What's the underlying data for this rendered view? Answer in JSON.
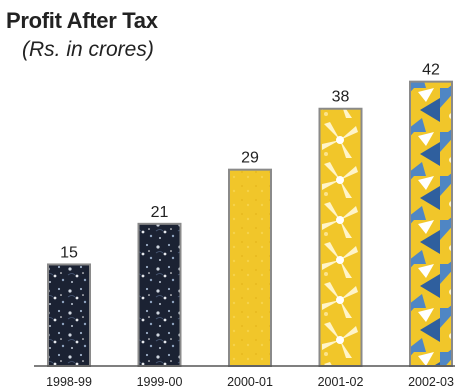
{
  "chart_data": {
    "type": "bar",
    "title": "Profit After Tax",
    "subtitle": "(Rs. in crores)",
    "categories": [
      "1998-99",
      "1999-00",
      "2000-01",
      "2001-02",
      "2002-03"
    ],
    "values": [
      15,
      21,
      29,
      38,
      42
    ],
    "xlabel": "",
    "ylabel": "",
    "ylim": [
      0,
      50
    ],
    "grid": false,
    "legend": "none",
    "bar_fills": [
      "dark-floral",
      "dark-floral",
      "yellow-plain",
      "yellow-floral",
      "blue-yellow-mixed"
    ]
  },
  "colors": {
    "dark_navy": "#1b2233",
    "sky_blue": "#4f86c4",
    "mustard_yellow": "#f1c62a",
    "pale_cream": "#fff4c8",
    "leaf_green": "#6a9e58",
    "frame_gray": "#8a8a8a",
    "baseline": "#555555"
  }
}
